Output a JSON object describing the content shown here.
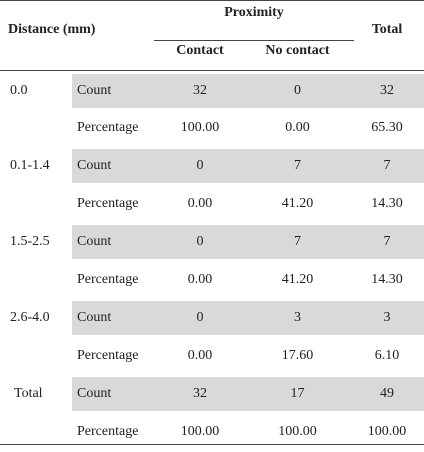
{
  "table": {
    "headers": {
      "distance": "Distance (mm)",
      "proximity": "Proximity",
      "contact": "Contact",
      "no_contact": "No contact",
      "total": "Total"
    },
    "groups": [
      {
        "distance": "0.0",
        "rows": [
          {
            "stat": "Count",
            "contact": "32",
            "no_contact": "0",
            "total": "32"
          },
          {
            "stat": "Percentage",
            "contact": "100.00",
            "no_contact": "0.00",
            "total": "65.30"
          }
        ]
      },
      {
        "distance": "0.1-1.4",
        "rows": [
          {
            "stat": "Count",
            "contact": "0",
            "no_contact": "7",
            "total": "7"
          },
          {
            "stat": "Percentage",
            "contact": "0.00",
            "no_contact": "41.20",
            "total": "14.30"
          }
        ]
      },
      {
        "distance": "1.5-2.5",
        "rows": [
          {
            "stat": "Count",
            "contact": "0",
            "no_contact": "7",
            "total": "7"
          },
          {
            "stat": "Percentage",
            "contact": "0.00",
            "no_contact": "41.20",
            "total": "14.30"
          }
        ]
      },
      {
        "distance": "2.6-4.0",
        "rows": [
          {
            "stat": "Count",
            "contact": "0",
            "no_contact": "3",
            "total": "3"
          },
          {
            "stat": "Percentage",
            "contact": "0.00",
            "no_contact": "17.60",
            "total": "6.10"
          }
        ]
      },
      {
        "distance": "Total",
        "rows": [
          {
            "stat": "Count",
            "contact": "32",
            "no_contact": "17",
            "total": "49"
          },
          {
            "stat": "Percentage",
            "contact": "100.00",
            "no_contact": "100.00",
            "total": "100.00"
          }
        ]
      }
    ]
  }
}
